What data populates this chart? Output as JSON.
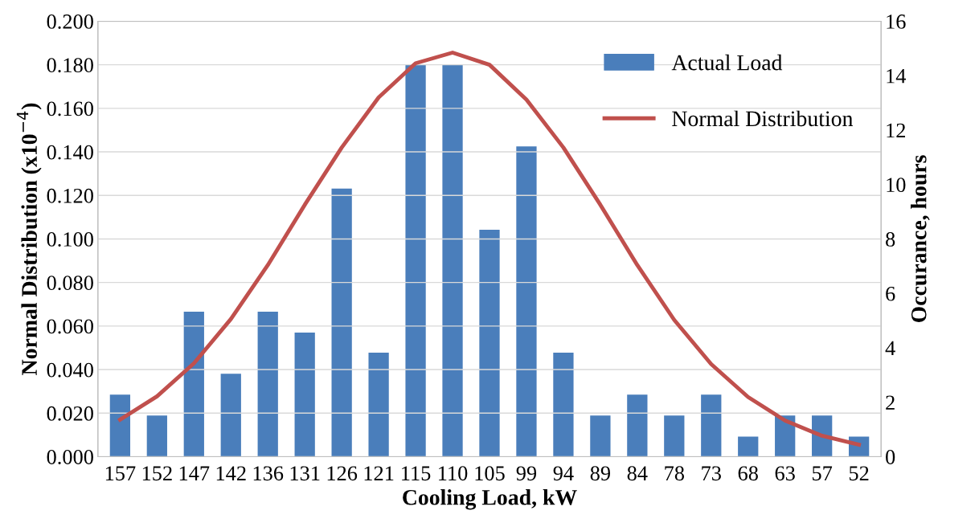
{
  "chart_data": {
    "type": "bar",
    "xlabel": "Cooling Load, kW",
    "ylabel": "Normal Distribution (x10$^{−4}$)",
    "y2label": "Occurance, hours",
    "categories": [
      "157",
      "152",
      "147",
      "142",
      "136",
      "131",
      "126",
      "121",
      "115",
      "110",
      "105",
      "99",
      "94",
      "89",
      "84",
      "78",
      "73",
      "68",
      "63",
      "57",
      "52"
    ],
    "series": [
      {
        "name": "Actual Load",
        "axis": "y2",
        "color": "#4a7ebb",
        "values": [
          2.28,
          1.51,
          5.33,
          3.05,
          5.33,
          4.56,
          9.85,
          3.82,
          14.4,
          14.4,
          8.34,
          11.4,
          3.82,
          1.51,
          2.28,
          1.51,
          2.28,
          0.74,
          1.51,
          1.51,
          0.74
        ]
      },
      {
        "name": "Normal Distribution",
        "type": "line",
        "axis": "y",
        "color": "#c0504d",
        "values": [
          0.017,
          0.0277,
          0.0429,
          0.0632,
          0.088,
          0.1157,
          0.142,
          0.165,
          0.1807,
          0.1856,
          0.18,
          0.164,
          0.142,
          0.1157,
          0.088,
          0.0628,
          0.0425,
          0.0274,
          0.0166,
          0.0096,
          0.0055
        ]
      }
    ],
    "ylim": [
      0,
      0.2
    ],
    "yticks": [
      {
        "value": 0,
        "label": "0.000"
      },
      {
        "value": 0.02,
        "label": "0.020"
      },
      {
        "value": 0.04,
        "label": "0.040"
      },
      {
        "value": 0.06,
        "label": "0.060"
      },
      {
        "value": 0.08,
        "label": "0.080"
      },
      {
        "value": 0.1,
        "label": "0.100"
      },
      {
        "value": 0.12,
        "label": "0.120"
      },
      {
        "value": 0.14,
        "label": "0.140"
      },
      {
        "value": 0.16,
        "label": "0.160"
      },
      {
        "value": 0.18,
        "label": "0.180"
      },
      {
        "value": 0.2,
        "label": "0.200"
      }
    ],
    "y2lim": [
      0,
      16
    ],
    "y2ticks": [
      0,
      2,
      4,
      6,
      8,
      10,
      12,
      14,
      16
    ],
    "grid": "y",
    "legend": "top right",
    "marker": "none",
    "line_style": "solid"
  }
}
